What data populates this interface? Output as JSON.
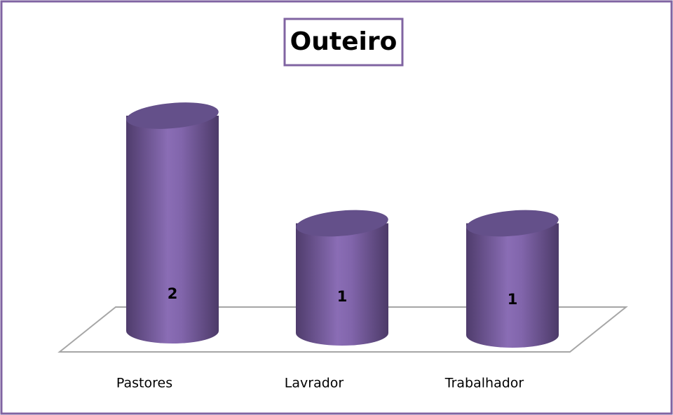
{
  "chart_data": {
    "type": "bar",
    "title": "Outeiro",
    "categories": [
      "Pastores",
      "Lavrador",
      "Trabalhador"
    ],
    "values": [
      2,
      1,
      1
    ],
    "color": "#8064a2",
    "ylim": [
      0,
      2
    ]
  }
}
